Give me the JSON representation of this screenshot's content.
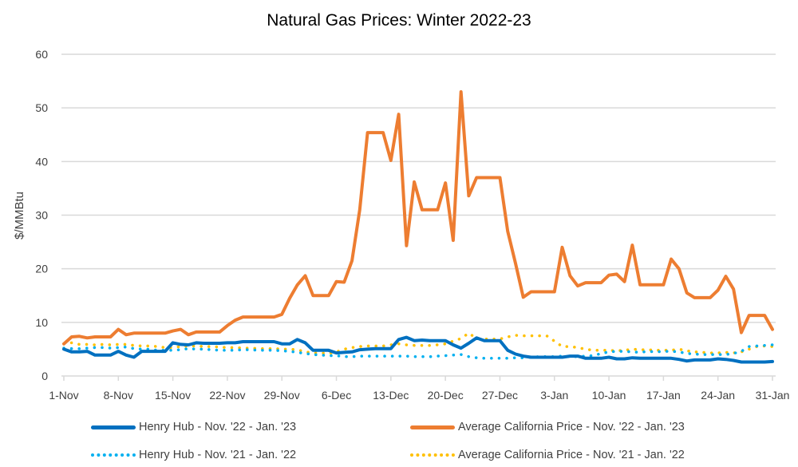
{
  "chart_data": {
    "type": "line",
    "title": "Natural Gas Prices: Winter 2022-23",
    "xlabel": "",
    "ylabel": "$/MMBtu",
    "ylim": [
      0,
      60
    ],
    "yticks": [
      "0",
      "10",
      "20",
      "30",
      "40",
      "50",
      "60"
    ],
    "xticks": [
      "1-Nov",
      "8-Nov",
      "15-Nov",
      "22-Nov",
      "29-Nov",
      "6-Dec",
      "13-Dec",
      "20-Dec",
      "27-Dec",
      "3-Jan",
      "10-Jan",
      "17-Jan",
      "24-Jan",
      "31-Jan"
    ],
    "x_range": [
      "1-Nov",
      "31-Jan"
    ],
    "grid": "horizontal",
    "legend_placement": "bottom",
    "series": [
      {
        "name": "Henry Hub - Nov. '22 - Jan. '23",
        "color": "#0070C0",
        "style": "solid",
        "values": [
          5,
          4.5,
          4.5,
          4.6,
          3.9,
          3.9,
          3.9,
          4.6,
          3.9,
          3.5,
          4.6,
          4.6,
          4.6,
          4.6,
          6.2,
          5.9,
          5.8,
          6.2,
          6.1,
          6.1,
          6.1,
          6.2,
          6.2,
          6.4,
          6.4,
          6.4,
          6.4,
          6.4,
          6,
          6,
          6.8,
          6.2,
          4.8,
          4.8,
          4.8,
          4.3,
          4.4,
          4.5,
          4.9,
          5,
          5.1,
          5.1,
          5.1,
          6.8,
          7.2,
          6.6,
          6.7,
          6.6,
          6.6,
          6.6,
          5.8,
          5.2,
          6.1,
          7.1,
          6.6,
          6.6,
          6.6,
          4.8,
          4.1,
          3.7,
          3.5,
          3.5,
          3.5,
          3.5,
          3.5,
          3.7,
          3.7,
          3.3,
          3.3,
          3.3,
          3.5,
          3.2,
          3.2,
          3.4,
          3.3,
          3.3,
          3.3,
          3.3,
          3.3,
          3.1,
          2.8,
          3.0,
          3.0,
          3.0,
          3.2,
          3.1,
          2.9,
          2.6,
          2.6,
          2.6,
          2.6,
          2.7
        ]
      },
      {
        "name": "Average California Price - Nov. '22 - Jan. '23",
        "color": "#ED7D31",
        "style": "solid",
        "values": [
          6,
          7.3,
          7.4,
          7.1,
          7.3,
          7.3,
          7.3,
          8.7,
          7.7,
          8,
          8,
          8,
          8,
          8,
          8.4,
          8.7,
          7.7,
          8.2,
          8.2,
          8.2,
          8.2,
          9.4,
          10.4,
          11,
          11,
          11,
          11,
          11,
          11.5,
          14.5,
          17,
          18.7,
          15,
          15,
          15,
          17.6,
          17.5,
          21.5,
          31,
          45.4,
          45.4,
          45.4,
          40.2,
          48.8,
          24.3,
          36.2,
          31,
          31,
          31,
          36,
          25.3,
          53,
          33.6,
          37,
          37,
          37,
          37,
          27,
          21,
          14.7,
          15.7,
          15.7,
          15.7,
          15.7,
          24,
          18.7,
          16.8,
          17.4,
          17.4,
          17.4,
          18.8,
          19,
          17.6,
          24.4,
          17,
          17,
          17,
          17,
          21.8,
          20,
          15.5,
          14.6,
          14.6,
          14.6,
          16,
          18.6,
          16.2,
          8.1,
          11.3,
          11.3,
          11.3,
          8.7
        ]
      },
      {
        "name": "Henry Hub - Nov. '21 - Jan. '22",
        "color": "#00B0F0",
        "style": "dotted",
        "values": [
          5.2,
          5.1,
          5.1,
          5.2,
          5.3,
          5.3,
          5.2,
          5.3,
          5.4,
          5.1,
          5.0,
          5.0,
          4.8,
          4.8,
          4.8,
          4.9,
          5.1,
          5.0,
          5.0,
          4.9,
          4.8,
          4.8,
          4.8,
          4.9,
          4.9,
          4.8,
          4.8,
          4.8,
          4.7,
          4.6,
          4.4,
          4.2,
          4.0,
          3.9,
          3.8,
          3.8,
          3.6,
          3.6,
          3.7,
          3.7,
          3.7,
          3.7,
          3.7,
          3.7,
          3.7,
          3.6,
          3.6,
          3.6,
          3.7,
          3.8,
          3.9,
          4.0,
          3.6,
          3.4,
          3.3,
          3.3,
          3.3,
          3.3,
          3.4,
          3.4,
          3.5,
          3.6,
          3.6,
          3.6,
          3.7,
          3.6,
          3.6,
          3.7,
          3.8,
          4.2,
          4.5,
          4.6,
          4.6,
          4.5,
          4.4,
          4.6,
          4.5,
          4.6,
          4.6,
          4.5,
          4.2,
          4.1,
          4.0,
          4.0,
          4.0,
          4.0,
          4.2,
          4.6,
          5.5,
          5.6,
          5.7,
          5.8
        ]
      },
      {
        "name": "Average California Price - Nov. '21 - Jan. '22",
        "color": "#FFC000",
        "style": "dotted",
        "values": [
          6,
          6.2,
          5.9,
          5.9,
          5.8,
          5.9,
          5.8,
          5.9,
          5.9,
          5.7,
          5.6,
          5.6,
          5.5,
          5.3,
          5.3,
          5.5,
          5.6,
          5.6,
          5.5,
          5.5,
          5.4,
          5.3,
          5.3,
          5.2,
          5.2,
          5.1,
          5.1,
          5.1,
          5.0,
          5.0,
          4.9,
          4.5,
          4.3,
          4.3,
          4.2,
          4.5,
          5.0,
          5.3,
          5.5,
          5.6,
          5.6,
          5.6,
          5.8,
          6.0,
          5.8,
          5.7,
          5.7,
          5.7,
          5.8,
          6.0,
          6.5,
          7.0,
          8.0,
          7.0,
          6.9,
          6.9,
          6.9,
          7.3,
          7.6,
          7.5,
          7.5,
          7.5,
          7.5,
          6.5,
          5.5,
          5.5,
          5.3,
          5.0,
          4.8,
          4.8,
          4.8,
          4.7,
          4.8,
          5.0,
          4.9,
          4.9,
          4.8,
          4.8,
          4.8,
          5.0,
          4.7,
          4.5,
          4.4,
          4.3,
          4.3,
          4.4,
          4.3,
          4.5,
          5.0,
          5.5,
          5.6,
          5.5
        ]
      }
    ]
  }
}
